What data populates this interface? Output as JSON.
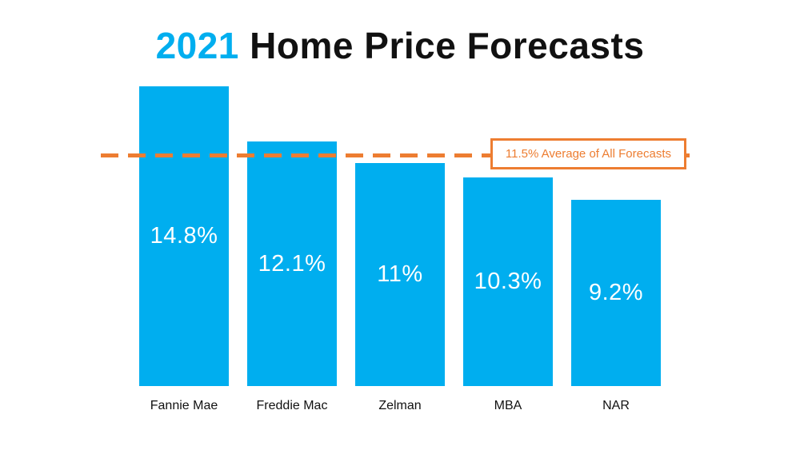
{
  "title": {
    "highlight": "2021",
    "rest": " Home Price Forecasts"
  },
  "colors": {
    "bar": "#00AEEF",
    "title_highlight": "#00AEEF",
    "accent_orange": "#ED7D31",
    "value_text": "#FFFFFF",
    "category_text": "#111111",
    "background": "#FFFFFF"
  },
  "chart_data": {
    "type": "bar",
    "title": "2021 Home Price Forecasts",
    "categories": [
      "Fannie Mae",
      "Freddie Mac",
      "Zelman",
      "MBA",
      "NAR"
    ],
    "values": [
      14.8,
      12.1,
      11,
      10.3,
      9.2
    ],
    "value_labels": [
      "14.8%",
      "12.1%",
      "11%",
      "10.3%",
      "9.2%"
    ],
    "xlabel": "",
    "ylabel": "",
    "ylim": [
      0,
      15.6
    ],
    "grid": false,
    "legend": false,
    "average_line": {
      "value": 11.5,
      "label": "11.5% Average of All Forecasts",
      "style": "dashed",
      "color": "#ED7D31"
    }
  }
}
